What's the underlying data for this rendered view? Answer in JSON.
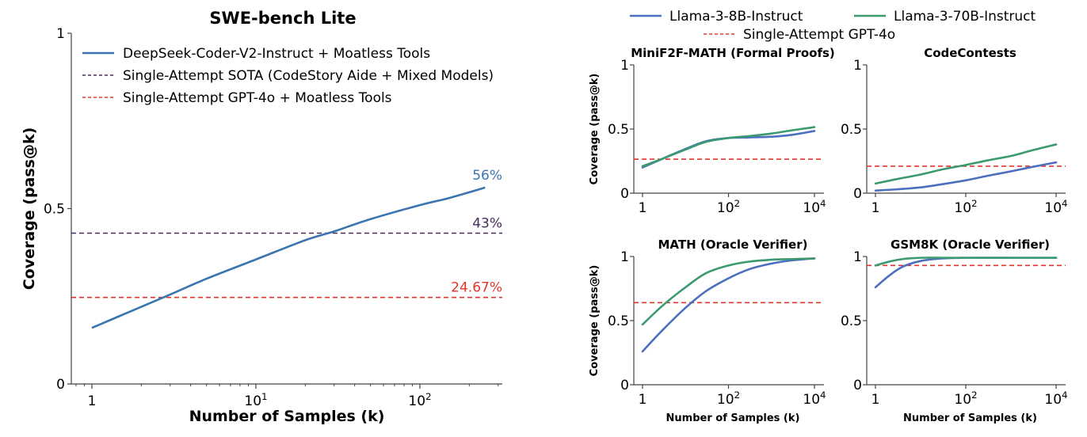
{
  "chart_data": [
    {
      "id": "swe",
      "type": "line",
      "title": "SWE-bench Lite",
      "xlabel": "Number of Samples (k)",
      "ylabel": "Coverage (pass@k)",
      "xscale": "log",
      "xlim": [
        0.75,
        330
      ],
      "ylim": [
        0,
        1
      ],
      "yticks": [
        0,
        0.5,
        1
      ],
      "ytick_labels": [
        "0",
        "0.5",
        "1"
      ],
      "xticks": [
        1,
        10,
        100
      ],
      "xtick_labels": [
        [
          "1",
          ""
        ],
        [
          "10",
          "1"
        ],
        [
          "10",
          "2"
        ]
      ],
      "legend_position": "top-left",
      "series": [
        {
          "name": "DeepSeek-Coder-V2-Instruct + Moatless Tools",
          "style": "solid",
          "color": "#3a75b0",
          "x": [
            1,
            2,
            3,
            5,
            10,
            20,
            30,
            50,
            100,
            150,
            250
          ],
          "y": [
            0.16,
            0.22,
            0.255,
            0.3,
            0.355,
            0.41,
            0.435,
            0.47,
            0.51,
            0.53,
            0.56
          ],
          "end_label": "56%"
        }
      ],
      "hlines": [
        {
          "name": "Single-Attempt SOTA (CodeStory Aide + Mixed Models)",
          "y": 0.43,
          "color": "#4a2c5a",
          "label": "43%"
        },
        {
          "name": "Single-Attempt GPT-4o + Moatless Tools",
          "y": 0.2467,
          "color": "#e0362c",
          "label": "24.67%"
        }
      ]
    },
    {
      "id": "minif2f",
      "type": "line",
      "title": "MiniF2F-MATH (Formal Proofs)",
      "ylabel": "Coverage (pass@k)",
      "xlabel": "",
      "xscale": "log",
      "xlim": [
        0.5,
        20000
      ],
      "ylim": [
        0,
        1
      ],
      "series": [
        {
          "name": "Llama-3-8B-Instruct",
          "x": [
            1,
            3,
            10,
            30,
            100,
            300,
            1000,
            3000,
            10000
          ],
          "y": [
            0.2,
            0.27,
            0.345,
            0.405,
            0.43,
            0.435,
            0.44,
            0.455,
            0.485
          ]
        },
        {
          "name": "Llama-3-70B-Instruct",
          "x": [
            1,
            3,
            10,
            30,
            100,
            300,
            1000,
            3000,
            10000
          ],
          "y": [
            0.21,
            0.27,
            0.34,
            0.4,
            0.43,
            0.445,
            0.465,
            0.49,
            0.515
          ]
        }
      ],
      "hline": 0.265
    },
    {
      "id": "codecontests",
      "type": "line",
      "title": "CodeContests",
      "ylabel": "",
      "xlabel": "",
      "xscale": "log",
      "xlim": [
        0.5,
        20000
      ],
      "ylim": [
        0,
        1
      ],
      "series": [
        {
          "name": "Llama-3-8B-Instruct",
          "x": [
            1,
            3,
            10,
            30,
            100,
            300,
            1000,
            3000,
            10000
          ],
          "y": [
            0.02,
            0.03,
            0.045,
            0.07,
            0.1,
            0.135,
            0.17,
            0.205,
            0.24
          ]
        },
        {
          "name": "Llama-3-70B-Instruct",
          "x": [
            1,
            3,
            10,
            30,
            100,
            300,
            1000,
            3000,
            10000
          ],
          "y": [
            0.075,
            0.11,
            0.145,
            0.185,
            0.22,
            0.255,
            0.29,
            0.335,
            0.38
          ]
        }
      ],
      "hline": 0.21
    },
    {
      "id": "math",
      "type": "line",
      "title": "MATH (Oracle Verifier)",
      "ylabel": "Coverage (pass@k)",
      "xlabel": "Number of Samples (k)",
      "xscale": "log",
      "xlim": [
        0.5,
        20000
      ],
      "ylim": [
        0,
        1
      ],
      "series": [
        {
          "name": "Llama-3-8B-Instruct",
          "x": [
            1,
            3,
            10,
            30,
            100,
            300,
            1000,
            3000,
            10000
          ],
          "y": [
            0.26,
            0.43,
            0.6,
            0.73,
            0.83,
            0.9,
            0.945,
            0.97,
            0.985
          ]
        },
        {
          "name": "Llama-3-70B-Instruct",
          "x": [
            1,
            3,
            10,
            30,
            100,
            300,
            1000,
            3000,
            10000
          ],
          "y": [
            0.47,
            0.62,
            0.76,
            0.87,
            0.93,
            0.96,
            0.975,
            0.98,
            0.985
          ]
        }
      ],
      "hline": 0.64
    },
    {
      "id": "gsm8k",
      "type": "line",
      "title": "GSM8K (Oracle Verifier)",
      "ylabel": "",
      "xlabel": "Number of Samples (k)",
      "xscale": "log",
      "xlim": [
        0.5,
        20000
      ],
      "ylim": [
        0,
        1
      ],
      "series": [
        {
          "name": "Llama-3-8B-Instruct",
          "x": [
            1,
            2,
            4,
            10,
            30,
            100,
            1000,
            10000
          ],
          "y": [
            0.76,
            0.85,
            0.92,
            0.965,
            0.985,
            0.99,
            0.99,
            0.99
          ]
        },
        {
          "name": "Llama-3-70B-Instruct",
          "x": [
            1,
            2,
            4,
            10,
            30,
            100,
            1000,
            10000
          ],
          "y": [
            0.93,
            0.96,
            0.98,
            0.99,
            0.99,
            0.99,
            0.99,
            0.99
          ]
        }
      ],
      "hline": 0.93
    }
  ],
  "shared_legend": {
    "items": [
      {
        "name": "Llama-3-8B-Instruct",
        "style": "solid",
        "color": "#4c6fbf"
      },
      {
        "name": "Llama-3-70B-Instruct",
        "style": "solid",
        "color": "#3b9a6e"
      },
      {
        "name": "Single-Attempt GPT-4o",
        "style": "dashed",
        "color": "#e0362c"
      }
    ]
  },
  "small_axes": {
    "ytick_labels": [
      "0",
      "0.5",
      "1"
    ],
    "xtick_labels": [
      [
        "1",
        ""
      ],
      [
        "10",
        "2"
      ],
      [
        "10",
        "4"
      ]
    ]
  }
}
